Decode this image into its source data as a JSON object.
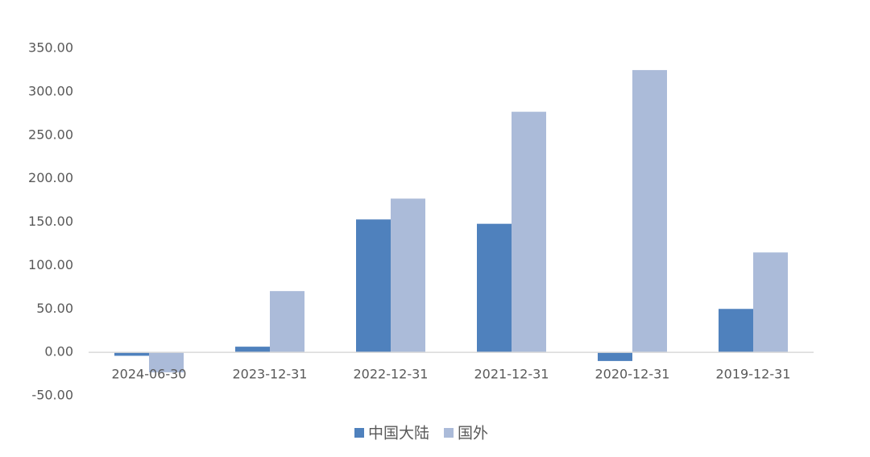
{
  "chart_data": {
    "type": "bar",
    "categories": [
      "2024-06-30",
      "2023-12-31",
      "2022-12-31",
      "2021-12-31",
      "2020-12-31",
      "2019-12-31"
    ],
    "series": [
      {
        "name": "中国大陆",
        "color": "#4f81bd",
        "values": [
          -4,
          6.5,
          153,
          148,
          -10,
          50
        ]
      },
      {
        "name": "国外",
        "color": "#abbbd9",
        "values": [
          -23,
          70.5,
          177,
          277,
          325,
          115
        ]
      }
    ],
    "ylim": [
      -50,
      350
    ],
    "yticks": [
      {
        "value": -50,
        "label": "-50.00"
      },
      {
        "value": 0,
        "label": "0.00"
      },
      {
        "value": 50,
        "label": "50.00"
      },
      {
        "value": 100,
        "label": "100.00"
      },
      {
        "value": 150,
        "label": "150.00"
      },
      {
        "value": 200,
        "label": "200.00"
      },
      {
        "value": 250,
        "label": "250.00"
      },
      {
        "value": 300,
        "label": "300.00"
      },
      {
        "value": 350,
        "label": "350.00"
      }
    ],
    "grid": false,
    "legend": "bottom"
  }
}
